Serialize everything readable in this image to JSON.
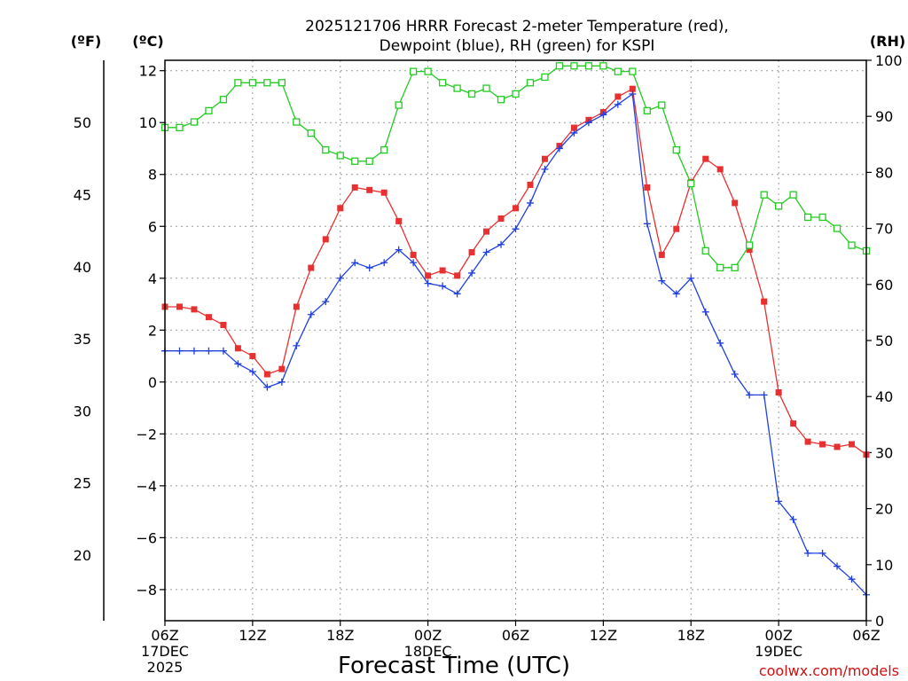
{
  "chart_data": {
    "type": "line",
    "title": [
      "2025121706 HRRR Forecast 2-meter Temperature (red),",
      "Dewpoint (blue), RH (green) for KSPI"
    ],
    "xlabel": "Forecast Time (UTC)",
    "credit": "coolwx.com/models",
    "units": {
      "fahrenheit": "(ºF)",
      "celsius": "(ºC)",
      "rh": "(RH)"
    },
    "x_range_hours": [
      0,
      48
    ],
    "x_ticks": [
      {
        "h": 0,
        "lines": [
          "06Z",
          "17DEC",
          "2025"
        ]
      },
      {
        "h": 6,
        "lines": [
          "12Z"
        ]
      },
      {
        "h": 12,
        "lines": [
          "18Z"
        ]
      },
      {
        "h": 18,
        "lines": [
          "00Z",
          "18DEC"
        ]
      },
      {
        "h": 24,
        "lines": [
          "06Z"
        ]
      },
      {
        "h": 30,
        "lines": [
          "12Z"
        ]
      },
      {
        "h": 36,
        "lines": [
          "18Z"
        ]
      },
      {
        "h": 42,
        "lines": [
          "00Z",
          "19DEC"
        ]
      },
      {
        "h": 48,
        "lines": [
          "06Z"
        ]
      }
    ],
    "y_celsius": {
      "range": [
        -9.2,
        12.4
      ],
      "ticks": [
        12,
        10,
        8,
        6,
        4,
        2,
        0,
        -2,
        -4,
        -6,
        -8
      ],
      "tick_labels": [
        "12",
        "10",
        "8",
        "6",
        "4",
        "2",
        "0",
        "−2",
        "−4",
        "−6",
        "−8"
      ]
    },
    "y_fahrenheit": {
      "ticks": [
        50,
        45,
        40,
        35,
        30,
        25,
        20
      ],
      "tick_labels": [
        "50",
        "45",
        "40",
        "35",
        "30",
        "25",
        "20"
      ]
    },
    "y_rh": {
      "range": [
        0,
        100
      ],
      "ticks": [
        100,
        90,
        80,
        70,
        60,
        50,
        40,
        30,
        20,
        10,
        0
      ],
      "tick_labels": [
        "100",
        "90",
        "80",
        "70",
        "60",
        "50",
        "40",
        "30",
        "20",
        "10",
        "0"
      ]
    },
    "series": [
      {
        "name": "Temperature",
        "axis": "celsius",
        "color": "#e83030",
        "marker": "filled-square",
        "values": [
          2.9,
          2.9,
          2.8,
          2.5,
          2.2,
          1.3,
          1.0,
          0.3,
          0.5,
          2.9,
          4.4,
          5.5,
          6.7,
          7.5,
          7.4,
          7.3,
          6.2,
          4.9,
          4.1,
          4.3,
          4.1,
          5.0,
          5.8,
          6.3,
          6.7,
          7.6,
          8.6,
          9.1,
          9.8,
          10.1,
          10.4,
          11.0,
          11.3,
          7.5,
          4.9,
          5.9,
          7.7,
          8.6,
          8.2,
          6.9,
          5.1,
          3.1,
          -0.4,
          -1.6,
          -2.3,
          -2.4,
          -2.5,
          -2.4,
          -2.8
        ]
      },
      {
        "name": "Dewpoint",
        "axis": "celsius",
        "color": "#2040e0",
        "marker": "plus",
        "values": [
          1.2,
          1.2,
          1.2,
          1.2,
          1.2,
          0.7,
          0.4,
          -0.2,
          0.0,
          1.4,
          2.6,
          3.1,
          4.0,
          4.6,
          4.4,
          4.6,
          5.1,
          4.6,
          3.8,
          3.7,
          3.4,
          4.2,
          5.0,
          5.3,
          5.9,
          6.9,
          8.2,
          9.0,
          9.6,
          10.0,
          10.3,
          10.7,
          11.1,
          6.1,
          3.9,
          3.4,
          4.0,
          2.7,
          1.5,
          0.3,
          -0.5,
          -0.5,
          -4.6,
          -5.3,
          -6.6,
          -6.6,
          -7.1,
          -7.6,
          -8.2
        ]
      },
      {
        "name": "RH",
        "axis": "rh",
        "color": "#22cc22",
        "marker": "open-square",
        "values": [
          88,
          88,
          89,
          91,
          93,
          96,
          96,
          96,
          96,
          89,
          87,
          84,
          83,
          82,
          82,
          84,
          92,
          98,
          98,
          96,
          95,
          94,
          95,
          93,
          94,
          96,
          97,
          99,
          99,
          99,
          99,
          98,
          98,
          91,
          92,
          84,
          78,
          66,
          63,
          63,
          67,
          76,
          74,
          76,
          72,
          72,
          70,
          67,
          66
        ]
      }
    ]
  }
}
